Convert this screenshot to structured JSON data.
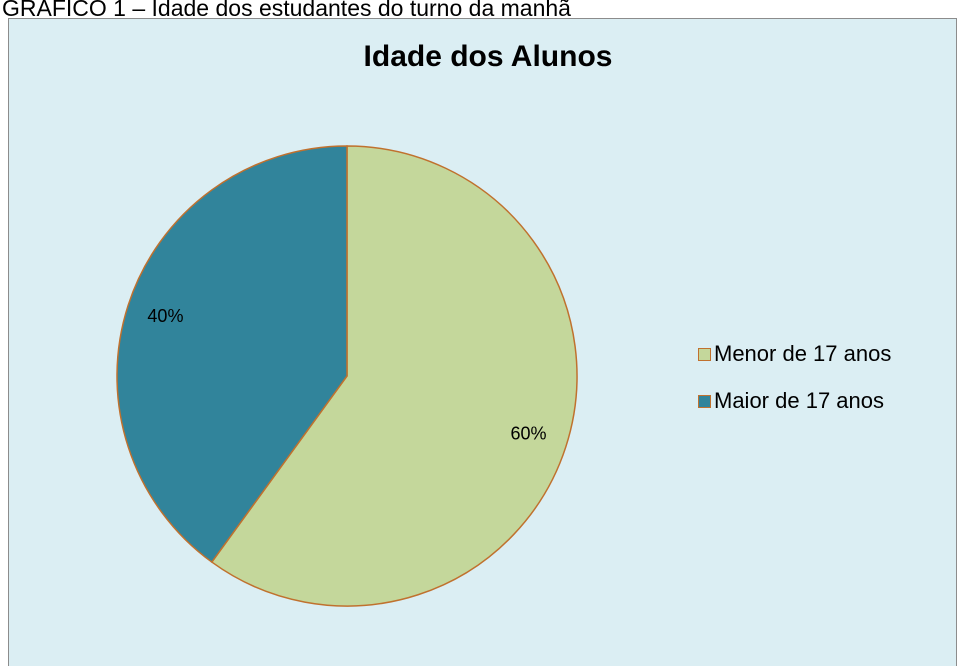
{
  "caption": "GRÁFICO 1 – Idade dos estudantes do turno da manhã",
  "chart_data": {
    "type": "pie",
    "title": "Idade dos Alunos",
    "categories": [
      "Menor de 17 anos",
      "Maior de 17 anos"
    ],
    "values": [
      60,
      40
    ],
    "value_labels": [
      "60%",
      "40%"
    ],
    "colors": [
      "#c4d79b",
      "#31849b"
    ],
    "legend": "right"
  }
}
